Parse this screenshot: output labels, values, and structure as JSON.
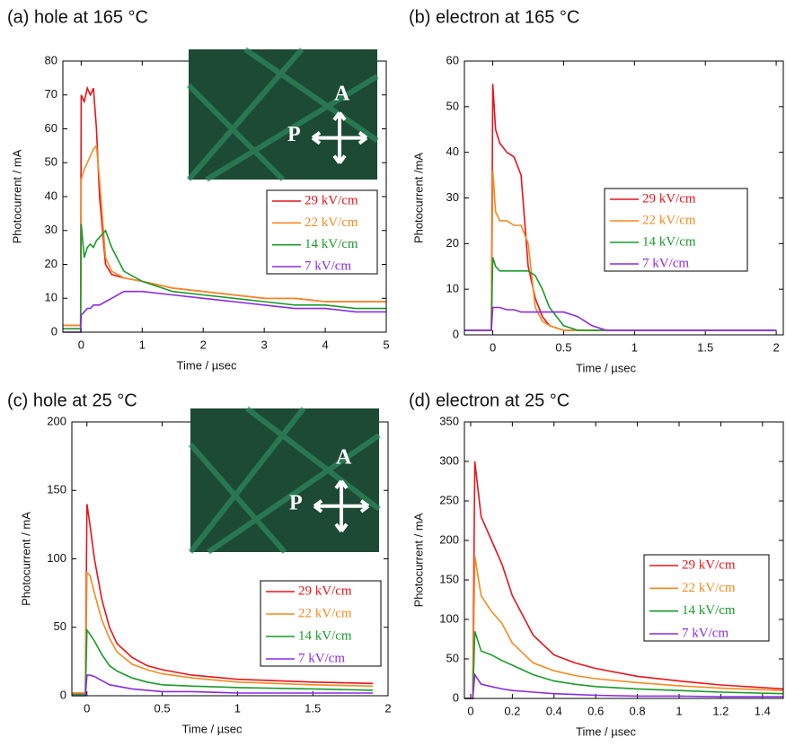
{
  "chart_data": [
    {
      "type": "line",
      "title": "(a) hole at 165 °C",
      "xlabel": "Time / µsec",
      "ylabel": "Photocurrent / mA",
      "x": [
        -0.3,
        -0.01,
        0,
        0.05,
        0.1,
        0.15,
        0.2,
        0.25,
        0.3,
        0.4,
        0.5,
        0.7,
        1,
        1.5,
        2,
        2.5,
        3,
        3.5,
        4,
        4.5,
        5
      ],
      "series": [
        {
          "name": "29 kV/cm",
          "color": "#e8141b",
          "values": [
            2,
            2,
            70,
            68,
            72,
            70,
            72,
            60,
            40,
            20,
            17,
            16,
            15,
            13,
            12,
            11,
            10,
            10,
            9,
            9,
            9
          ]
        },
        {
          "name": "22 kV/cm",
          "color": "#f58a1f",
          "values": [
            2,
            2,
            45,
            48,
            50,
            52,
            54,
            55,
            45,
            22,
            18,
            16,
            15,
            13,
            12,
            11,
            10,
            10,
            9,
            9,
            9
          ]
        },
        {
          "name": "14 kV/cm",
          "color": "#1a9a2a",
          "values": [
            1,
            1,
            32,
            22,
            25,
            26,
            25,
            27,
            28,
            30,
            25,
            18,
            15,
            12,
            11,
            10,
            9,
            8,
            8,
            7,
            7
          ]
        },
        {
          "name": "7 kV/cm",
          "color": "#8a2be2",
          "values": [
            0,
            0,
            5,
            6,
            7,
            7,
            8,
            8,
            8,
            9,
            10,
            12,
            12,
            11,
            10,
            9,
            8,
            7,
            7,
            6,
            6
          ]
        }
      ],
      "xlim": [
        -0.3,
        5
      ],
      "xticks": [
        0,
        1,
        2,
        3,
        4,
        5
      ],
      "ylim": [
        0,
        80
      ],
      "yticks": [
        0,
        10,
        20,
        30,
        40,
        50,
        60,
        70,
        80
      ],
      "legend": "right",
      "annotations": [
        "A",
        "P"
      ]
    },
    {
      "type": "line",
      "title": "(b) electron at 165 °C",
      "xlabel": "Time / µsec",
      "ylabel": "Photocurrent /mA",
      "x": [
        -0.2,
        -0.01,
        0,
        0.02,
        0.05,
        0.1,
        0.15,
        0.2,
        0.25,
        0.3,
        0.35,
        0.4,
        0.5,
        0.6,
        0.7,
        0.8,
        1,
        1.5,
        2
      ],
      "series": [
        {
          "name": "29 kV/cm",
          "color": "#e8141b",
          "values": [
            1,
            1,
            55,
            45,
            42,
            40,
            39,
            35,
            15,
            8,
            4,
            2,
            1,
            1,
            1,
            1,
            1,
            1,
            1
          ]
        },
        {
          "name": "22 kV/cm",
          "color": "#f58a1f",
          "values": [
            1,
            1,
            36,
            27,
            25,
            25,
            24,
            24,
            20,
            6,
            3,
            2,
            1,
            1,
            1,
            1,
            1,
            1,
            1
          ]
        },
        {
          "name": "14 kV/cm",
          "color": "#1a9a2a",
          "values": [
            1,
            1,
            17,
            15,
            14,
            14,
            14,
            14,
            14,
            13,
            10,
            6,
            2,
            1,
            1,
            1,
            1,
            1,
            1
          ]
        },
        {
          "name": "7 kV/cm",
          "color": "#8a2be2",
          "values": [
            1,
            1,
            6,
            6,
            6,
            5.5,
            5.5,
            5,
            5,
            5,
            5,
            5,
            5,
            4,
            2,
            1,
            1,
            1,
            1
          ]
        }
      ],
      "xlim": [
        -0.2,
        2.05
      ],
      "xticks": [
        0,
        0.5,
        1,
        1.5,
        2
      ],
      "ylim": [
        0,
        60
      ],
      "yticks": [
        0,
        10,
        20,
        30,
        40,
        50,
        60
      ],
      "legend": "right"
    },
    {
      "type": "line",
      "title": "(c) hole at 25 °C",
      "xlabel": "Time / µsec",
      "ylabel": "Photocurrent / mA",
      "x": [
        -0.1,
        -0.01,
        0,
        0.02,
        0.05,
        0.1,
        0.15,
        0.2,
        0.3,
        0.4,
        0.5,
        0.7,
        1,
        1.5,
        1.9
      ],
      "series": [
        {
          "name": "29 kV/cm",
          "color": "#e8141b",
          "values": [
            2,
            2,
            140,
            125,
            100,
            70,
            50,
            38,
            28,
            22,
            19,
            15,
            12,
            10,
            9
          ]
        },
        {
          "name": "22 kV/cm",
          "color": "#f58a1f",
          "values": [
            2,
            2,
            90,
            88,
            75,
            55,
            42,
            32,
            23,
            19,
            16,
            13,
            10,
            8,
            7
          ]
        },
        {
          "name": "14 kV/cm",
          "color": "#1a9a2a",
          "values": [
            1,
            1,
            48,
            45,
            40,
            30,
            22,
            18,
            13,
            10,
            8,
            7,
            6,
            5,
            4
          ]
        },
        {
          "name": "7 kV/cm",
          "color": "#8a2be2",
          "values": [
            0,
            0,
            15,
            15,
            14,
            11,
            8,
            7,
            5,
            4,
            3,
            3,
            2,
            2,
            2
          ]
        }
      ],
      "xlim": [
        -0.1,
        2
      ],
      "xticks": [
        0,
        0.5,
        1,
        1.5,
        2
      ],
      "ylim": [
        0,
        200
      ],
      "yticks": [
        0,
        50,
        100,
        150,
        200
      ],
      "legend": "right",
      "annotations": [
        "A",
        "P"
      ]
    },
    {
      "type": "line",
      "title": "(d) electron at 25 °C",
      "xlabel": "Time / µsec",
      "ylabel": "Photocurrent / mA",
      "x": [
        -0.03,
        0.01,
        0.02,
        0.05,
        0.1,
        0.15,
        0.2,
        0.3,
        0.4,
        0.5,
        0.6,
        0.8,
        1,
        1.2,
        1.5
      ],
      "series": [
        {
          "name": "29 kV/cm",
          "color": "#e8141b",
          "values": [
            0,
            0,
            300,
            230,
            200,
            170,
            130,
            80,
            55,
            45,
            38,
            28,
            22,
            17,
            12
          ]
        },
        {
          "name": "22 kV/cm",
          "color": "#f58a1f",
          "values": [
            0,
            0,
            180,
            130,
            110,
            95,
            70,
            45,
            35,
            29,
            25,
            20,
            16,
            13,
            10
          ]
        },
        {
          "name": "14 kV/cm",
          "color": "#1a9a2a",
          "values": [
            0,
            0,
            85,
            60,
            55,
            48,
            42,
            30,
            22,
            18,
            15,
            12,
            10,
            8,
            6
          ]
        },
        {
          "name": "7 kV/cm",
          "color": "#8a2be2",
          "values": [
            0,
            0,
            30,
            18,
            15,
            12,
            10,
            8,
            6,
            5,
            4,
            3,
            3,
            2,
            2
          ]
        }
      ],
      "xlim": [
        -0.03,
        1.5
      ],
      "xticks": [
        0,
        0.2,
        0.4,
        0.6,
        0.8,
        1,
        1.2,
        1.4
      ],
      "ylim": [
        0,
        350
      ],
      "yticks": [
        0,
        50,
        100,
        150,
        200,
        250,
        300,
        350
      ],
      "legend": "right"
    }
  ]
}
